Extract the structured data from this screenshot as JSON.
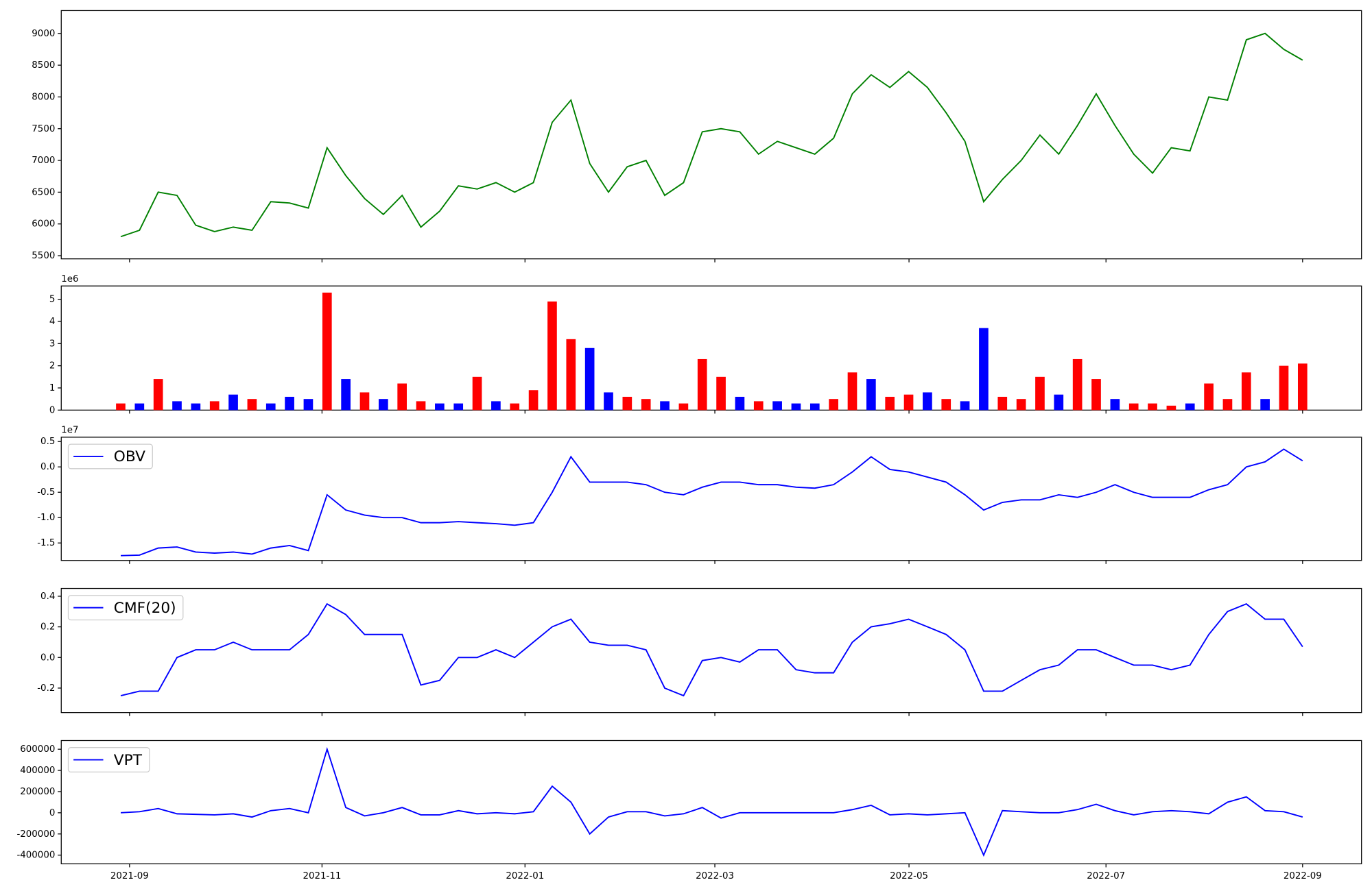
{
  "chart_data": [
    {
      "type": "line",
      "color": "#008000",
      "values": [
        5800,
        5900,
        6500,
        6450,
        5980,
        5880,
        5950,
        5900,
        6350,
        6330,
        6250,
        7200,
        6760,
        6400,
        6150,
        6450,
        5950,
        6200,
        6600,
        6550,
        6650,
        6500,
        6650,
        7600,
        7950,
        6950,
        6500,
        6900,
        7000,
        6450,
        6650,
        7450,
        7500,
        7450,
        7100,
        7300,
        7200,
        7100,
        7350,
        8050,
        8350,
        8150,
        8400,
        8150,
        7750,
        7300,
        6350,
        6700,
        7000,
        7400,
        7100,
        7550,
        8050,
        7550,
        7100,
        6800,
        7200,
        7150,
        8000,
        7950,
        8900,
        9000,
        8750,
        8580
      ],
      "ylim": [
        5450,
        9360
      ],
      "yticks": [
        5500,
        6000,
        6500,
        7000,
        7500,
        8000,
        8500,
        9000
      ]
    },
    {
      "type": "bar",
      "offset_text": "1e6",
      "values": [
        0.3,
        0.3,
        1.4,
        0.4,
        0.3,
        0.4,
        0.7,
        0.5,
        0.3,
        0.6,
        0.5,
        5.3,
        1.4,
        0.8,
        0.5,
        1.2,
        0.4,
        0.3,
        0.3,
        1.5,
        0.4,
        0.3,
        0.9,
        4.9,
        3.2,
        2.8,
        0.8,
        0.6,
        0.5,
        0.4,
        0.3,
        2.3,
        1.5,
        0.6,
        0.4,
        0.4,
        0.3,
        0.3,
        0.5,
        1.7,
        1.4,
        0.6,
        0.7,
        0.8,
        0.5,
        0.4,
        3.7,
        0.6,
        0.5,
        1.5,
        0.7,
        2.3,
        1.4,
        0.5,
        0.3,
        0.3,
        0.2,
        0.3,
        1.2,
        0.5,
        1.7,
        0.5,
        2.0,
        2.1
      ],
      "colors": [
        "red",
        "blue",
        "red",
        "blue",
        "blue",
        "red",
        "blue",
        "red",
        "blue",
        "blue",
        "blue",
        "red",
        "blue",
        "red",
        "blue",
        "red",
        "red",
        "blue",
        "blue",
        "red",
        "blue",
        "red",
        "red",
        "red",
        "red",
        "blue",
        "blue",
        "red",
        "red",
        "blue",
        "red",
        "red",
        "red",
        "blue",
        "red",
        "blue",
        "blue",
        "blue",
        "red",
        "red",
        "blue",
        "red",
        "red",
        "blue",
        "red",
        "blue",
        "blue",
        "red",
        "red",
        "red",
        "blue",
        "red",
        "red",
        "blue",
        "red",
        "red",
        "red",
        "blue",
        "red",
        "red",
        "red",
        "blue",
        "red",
        "red"
      ],
      "ylim": [
        0,
        5.6
      ],
      "yticks": [
        0,
        1,
        2,
        3,
        4,
        5
      ]
    },
    {
      "type": "line",
      "offset_text": "1e7",
      "legend": "upper left",
      "series": [
        {
          "name": "OBV",
          "color": "#0000ff",
          "values": [
            -1.75,
            -1.74,
            -1.6,
            -1.58,
            -1.68,
            -1.7,
            -1.68,
            -1.72,
            -1.6,
            -1.55,
            -1.65,
            -0.55,
            -0.85,
            -0.95,
            -1.0,
            -1.0,
            -1.1,
            -1.1,
            -1.08,
            -1.1,
            -1.12,
            -1.15,
            -1.1,
            -0.5,
            0.2,
            -0.3,
            -0.3,
            -0.3,
            -0.35,
            -0.5,
            -0.55,
            -0.4,
            -0.3,
            -0.3,
            -0.35,
            -0.35,
            -0.4,
            -0.42,
            -0.35,
            -0.1,
            0.2,
            -0.05,
            -0.1,
            -0.2,
            -0.3,
            -0.55,
            -0.85,
            -0.7,
            -0.65,
            -0.65,
            -0.55,
            -0.6,
            -0.5,
            -0.35,
            -0.5,
            -0.6,
            -0.6,
            -0.6,
            -0.45,
            -0.35,
            0.0,
            0.1,
            0.35,
            0.12
          ]
        }
      ],
      "ylim": [
        -1.845,
        0.586
      ],
      "yticks": [
        -1.5,
        {
          "value": -1.0,
          "label": "-1.0"
        },
        -0.5,
        {
          "value": 0,
          "label": "0.0"
        },
        0.5
      ]
    },
    {
      "type": "line",
      "legend": "upper left",
      "series": [
        {
          "name": "CMF(20)",
          "color": "#0000ff",
          "values": [
            -0.25,
            -0.22,
            -0.22,
            0.0,
            0.05,
            0.05,
            0.1,
            0.05,
            0.05,
            0.05,
            0.15,
            0.35,
            0.28,
            0.15,
            0.15,
            0.15,
            -0.18,
            -0.15,
            0.0,
            0.0,
            0.05,
            0.0,
            0.1,
            0.2,
            0.25,
            0.1,
            0.08,
            0.08,
            0.05,
            -0.2,
            -0.25,
            -0.02,
            0.0,
            -0.03,
            0.05,
            0.05,
            -0.08,
            -0.1,
            -0.1,
            0.1,
            0.2,
            0.22,
            0.25,
            0.2,
            0.15,
            0.05,
            -0.22,
            -0.22,
            -0.15,
            -0.08,
            -0.05,
            0.05,
            0.05,
            0.0,
            -0.05,
            -0.05,
            -0.08,
            -0.05,
            0.15,
            0.3,
            0.35,
            0.25,
            0.25,
            0.07
          ]
        }
      ],
      "ylim": [
        -0.36,
        0.451
      ],
      "yticks": [
        -0.2,
        {
          "value": 0,
          "label": "0.0"
        },
        0.2,
        0.4
      ]
    },
    {
      "type": "line",
      "legend": "upper left",
      "series": [
        {
          "name": "VPT",
          "color": "#0000ff",
          "values": [
            0,
            10000,
            40000,
            -10000,
            -15000,
            -20000,
            -10000,
            -40000,
            20000,
            40000,
            0,
            600000,
            50000,
            -30000,
            0,
            50000,
            -20000,
            -20000,
            20000,
            -10000,
            0,
            -10000,
            10000,
            250000,
            100000,
            -200000,
            -40000,
            10000,
            10000,
            -30000,
            -10000,
            50000,
            -50000,
            0,
            0,
            0,
            0,
            0,
            0,
            30000,
            70000,
            -20000,
            -10000,
            -20000,
            -10000,
            0,
            -400000,
            20000,
            10000,
            0,
            0,
            30000,
            80000,
            20000,
            -20000,
            10000,
            20000,
            10000,
            -10000,
            100000,
            150000,
            20000,
            10000,
            -40000
          ]
        }
      ],
      "ylim": [
        -482000,
        682000
      ],
      "yticks": [
        -400000,
        -200000,
        0,
        200000,
        400000,
        600000
      ],
      "xlim": [
        -3.17,
        66.14
      ],
      "xticks": [
        {
          "value": 0.47,
          "label": "2021-09"
        },
        {
          "value": 10.73,
          "label": "2021-11"
        },
        {
          "value": 21.55,
          "label": "2022-01"
        },
        {
          "value": 31.67,
          "label": "2022-03"
        },
        {
          "value": 42.02,
          "label": "2022-05"
        },
        {
          "value": 52.52,
          "label": "2022-07"
        },
        {
          "value": 63.0,
          "label": "2022-09"
        }
      ]
    }
  ]
}
